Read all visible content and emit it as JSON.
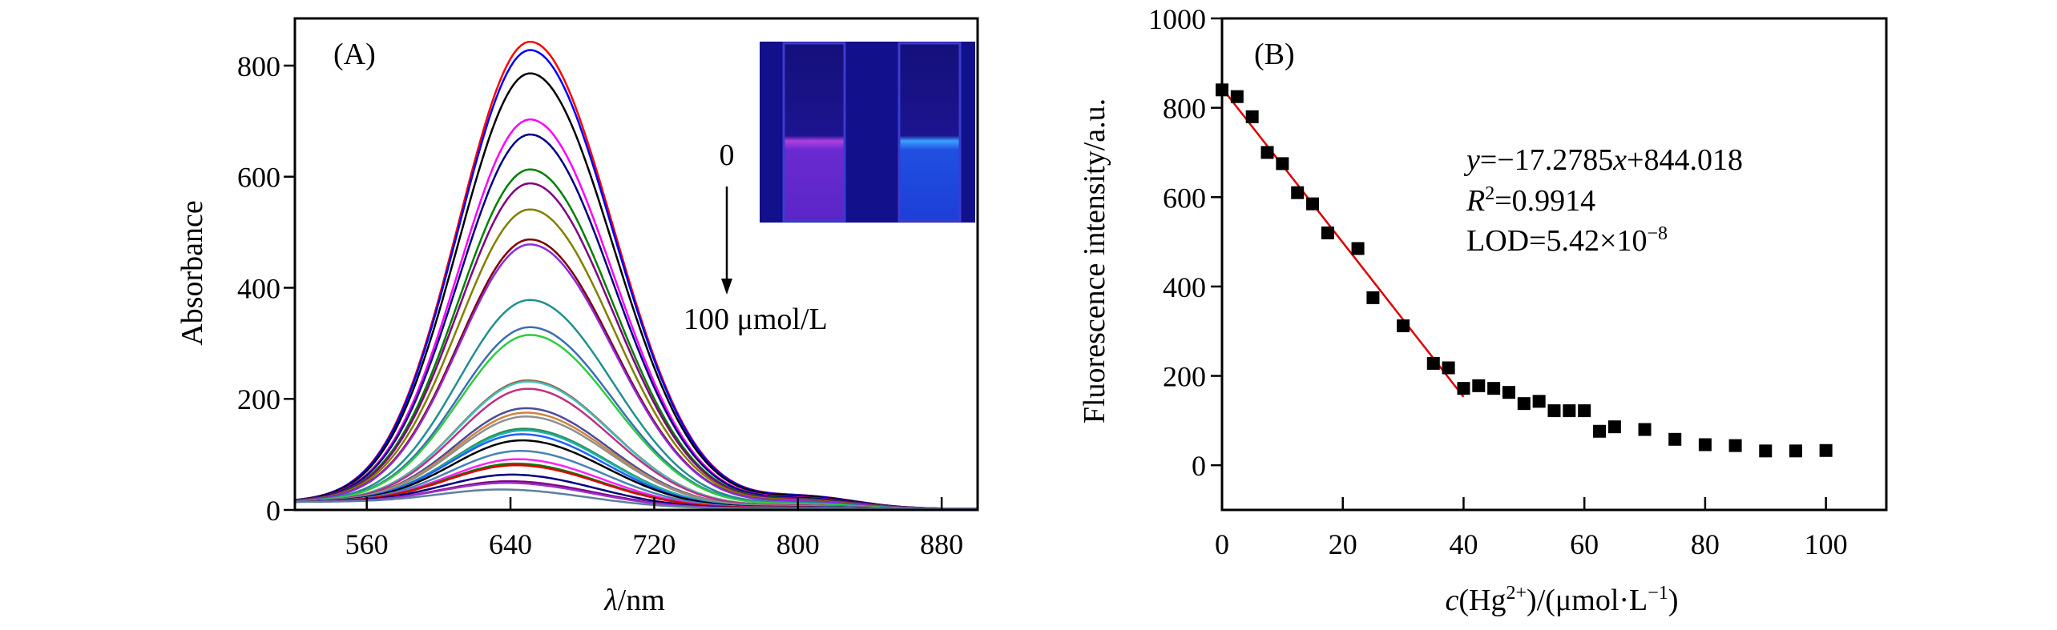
{
  "chart_data": [
    {
      "type": "line",
      "panel_label": "(A)",
      "xlabel_italic": "λ",
      "xlabel_rest": "/nm",
      "ylabel": "Absorbance",
      "xlim": [
        520,
        900
      ],
      "ylim": [
        0,
        885
      ],
      "xticks": [
        560,
        640,
        720,
        800,
        880
      ],
      "yticks": [
        0,
        200,
        400,
        600,
        800
      ],
      "grid": false,
      "annotation_top": "0",
      "annotation_bottom": "100 μmol/L",
      "inset": "photo of two cuvettes under UV light (left pink-purple, right blue)",
      "series": [
        {
          "peak_nm": 651,
          "peak": 840,
          "color": "#ff0000"
        },
        {
          "peak_nm": 651,
          "peak": 825,
          "color": "#0000ff"
        },
        {
          "peak_nm": 651,
          "peak": 783,
          "color": "#000000"
        },
        {
          "peak_nm": 651,
          "peak": 700,
          "color": "#ff00ff"
        },
        {
          "peak_nm": 651,
          "peak": 673,
          "color": "#000080"
        },
        {
          "peak_nm": 651,
          "peak": 610,
          "color": "#008000"
        },
        {
          "peak_nm": 651,
          "peak": 585,
          "color": "#800080"
        },
        {
          "peak_nm": 651,
          "peak": 538,
          "color": "#808000"
        },
        {
          "peak_nm": 651,
          "peak": 484,
          "color": "#800000"
        },
        {
          "peak_nm": 651,
          "peak": 475,
          "color": "#8a2be2"
        },
        {
          "peak_nm": 651,
          "peak": 375,
          "color": "#20908f"
        },
        {
          "peak_nm": 651,
          "peak": 326,
          "color": "#3c6eb4"
        },
        {
          "peak_nm": 651,
          "peak": 312,
          "color": "#2ecc40"
        },
        {
          "peak_nm": 650,
          "peak": 230,
          "color": "#a0522d"
        },
        {
          "peak_nm": 650,
          "peak": 228,
          "color": "#40c0c0"
        },
        {
          "peak_nm": 650,
          "peak": 215,
          "color": "#c03080"
        },
        {
          "peak_nm": 649,
          "peak": 180,
          "color": "#4b4b9b"
        },
        {
          "peak_nm": 649,
          "peak": 172,
          "color": "#cd853f"
        },
        {
          "peak_nm": 649,
          "peak": 165,
          "color": "#909090"
        },
        {
          "peak_nm": 648,
          "peak": 143,
          "color": "#2e8b57"
        },
        {
          "peak_nm": 648,
          "peak": 140,
          "color": "#20b2aa"
        },
        {
          "peak_nm": 647,
          "peak": 133,
          "color": "#1e60ff"
        },
        {
          "peak_nm": 647,
          "peak": 122,
          "color": "#000000"
        },
        {
          "peak_nm": 646,
          "peak": 103,
          "color": "#4682b4"
        },
        {
          "peak_nm": 645,
          "peak": 88,
          "color": "#ff20ff"
        },
        {
          "peak_nm": 644,
          "peak": 80,
          "color": "#008000"
        },
        {
          "peak_nm": 644,
          "peak": 77,
          "color": "#e00000"
        },
        {
          "peak_nm": 642,
          "peak": 60,
          "color": "#000080"
        },
        {
          "peak_nm": 641,
          "peak": 48,
          "color": "#800080"
        },
        {
          "peak_nm": 640,
          "peak": 45,
          "color": "#9932cc"
        },
        {
          "peak_nm": 638,
          "peak": 33,
          "color": "#5f7f9f"
        }
      ]
    },
    {
      "type": "scatter",
      "panel_label": "(B)",
      "xlabel_italic": "c",
      "xlabel_rest": "(Hg",
      "xlabel_sup": "2+",
      "xlabel_rest2": ")/(μmol·L",
      "xlabel_sup2": "−1",
      "xlabel_end": ")",
      "ylabel": "Fluorescence intensity/a.u.",
      "xlim": [
        0,
        110
      ],
      "ylim": [
        -100,
        1000
      ],
      "xticks": [
        0,
        20,
        40,
        60,
        80,
        100
      ],
      "yticks": [
        0,
        200,
        400,
        600,
        800,
        1000
      ],
      "grid": false,
      "marker_color": "#000000",
      "fit_color": "#e00000",
      "fit": {
        "slope": -17.2785,
        "intercept": 844.018,
        "x_range": [
          0,
          40
        ]
      },
      "equation": {
        "line1_y": "y",
        "line1_rest": "=−17.2785",
        "line1_x": "x",
        "line1_end": "+844.018",
        "line2_r": "R",
        "line2_sup": "2",
        "line2_rest": "=0.9914",
        "line3": "LOD=5.42×10",
        "line3_sup": "−8"
      },
      "points": [
        [
          0,
          840
        ],
        [
          2.5,
          825
        ],
        [
          5,
          780
        ],
        [
          7.5,
          700
        ],
        [
          10,
          675
        ],
        [
          12.5,
          610
        ],
        [
          15,
          585
        ],
        [
          17.5,
          520
        ],
        [
          22.5,
          485
        ],
        [
          25,
          375
        ],
        [
          30,
          312
        ],
        [
          35,
          228
        ],
        [
          37.5,
          218
        ],
        [
          40,
          172
        ],
        [
          42.5,
          178
        ],
        [
          45,
          172
        ],
        [
          47.5,
          163
        ],
        [
          50,
          138
        ],
        [
          52.5,
          143
        ],
        [
          55,
          122
        ],
        [
          57.5,
          122
        ],
        [
          60,
          122
        ],
        [
          62.5,
          76
        ],
        [
          65,
          86
        ],
        [
          70,
          80
        ],
        [
          75,
          58
        ],
        [
          80,
          46
        ],
        [
          85,
          44
        ],
        [
          90,
          32
        ],
        [
          95,
          32
        ],
        [
          100,
          33
        ]
      ]
    }
  ]
}
